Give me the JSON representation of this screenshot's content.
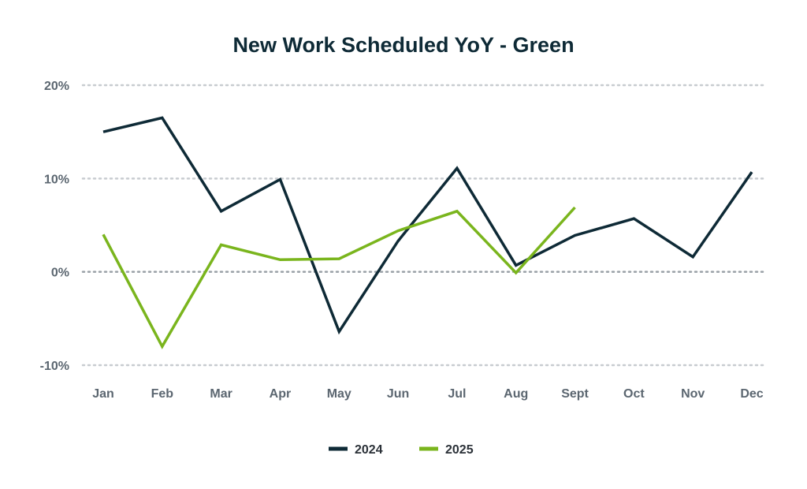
{
  "chart_data": {
    "type": "line",
    "title": "New Work Scheduled YoY - Green",
    "xlabel": "",
    "ylabel": "",
    "categories": [
      "Jan",
      "Feb",
      "Mar",
      "Apr",
      "May",
      "Jun",
      "Jul",
      "Aug",
      "Sept",
      "Oct",
      "Nov",
      "Dec"
    ],
    "ylim": [
      -10,
      20
    ],
    "yticks": [
      20,
      10,
      0,
      -10
    ],
    "ytick_labels": [
      "20%",
      "10%",
      "0%",
      "-10%"
    ],
    "grid": true,
    "legend_position": "bottom-center",
    "series": [
      {
        "name": "2024",
        "color": "#0e2a36",
        "values": [
          15.0,
          16.5,
          6.5,
          9.9,
          -6.4,
          3.3,
          11.1,
          0.7,
          3.9,
          5.7,
          1.6,
          10.7
        ]
      },
      {
        "name": "2025",
        "color": "#7ab51d",
        "values": [
          4.0,
          -8.0,
          2.9,
          1.3,
          1.4,
          4.4,
          6.5,
          -0.1,
          6.9,
          null,
          null,
          null
        ]
      }
    ]
  }
}
